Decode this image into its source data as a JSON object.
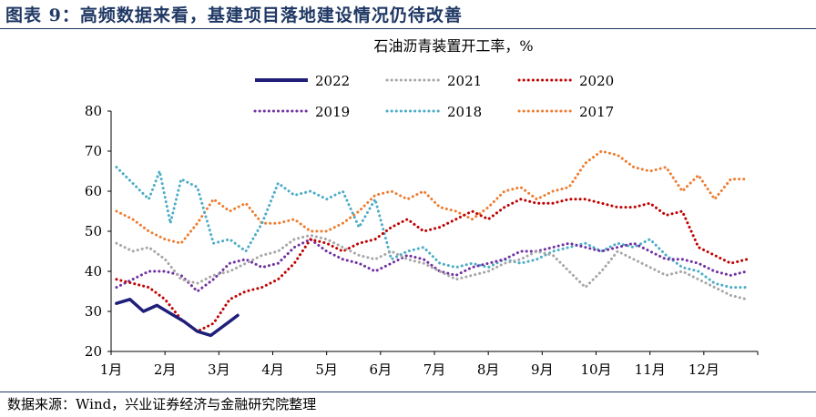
{
  "figure": {
    "title": "图表 9：高频数据来看，基建项目落地建设情况仍待改善",
    "source": "数据来源：Wind，兴业证券经济与金融研究院整理"
  },
  "chart_data": {
    "type": "line",
    "title": "石油沥青装置开工率，%",
    "xlabel": "",
    "ylabel": "",
    "ylim": [
      20,
      80
    ],
    "yticks": [
      20,
      30,
      40,
      50,
      60,
      70,
      80
    ],
    "xlim": [
      0,
      12
    ],
    "months": [
      "1月",
      "2月",
      "3月",
      "4月",
      "5月",
      "6月",
      "7月",
      "8月",
      "9月",
      "10月",
      "11月",
      "12月"
    ],
    "grid": false,
    "legend_position": "top",
    "series": [
      {
        "name": "2022",
        "color": "#1f1f7a",
        "style": "solid",
        "x": [
          0.1,
          0.35,
          0.6,
          0.85,
          1.1,
          1.35,
          1.6,
          1.85,
          2.1,
          2.35
        ],
        "y": [
          32,
          33,
          30,
          31.5,
          29.5,
          27.5,
          25,
          24,
          26.5,
          29
        ]
      },
      {
        "name": "2021",
        "color": "#a6a6a6",
        "style": "dotted",
        "x": [
          0.1,
          0.4,
          0.7,
          1.0,
          1.3,
          1.6,
          1.9,
          2.2,
          2.5,
          2.8,
          3.1,
          3.4,
          3.7,
          4.0,
          4.3,
          4.6,
          4.9,
          5.2,
          5.5,
          5.8,
          6.1,
          6.4,
          6.7,
          7.0,
          7.3,
          7.6,
          7.9,
          8.2,
          8.5,
          8.8,
          9.1,
          9.4,
          9.7,
          10.0,
          10.3,
          10.6,
          10.9,
          11.2,
          11.5,
          11.8
        ],
        "y": [
          47,
          45,
          46,
          43,
          38,
          37,
          39,
          40,
          42,
          44,
          45,
          48,
          49,
          48,
          46,
          44,
          43,
          45,
          43,
          42,
          40,
          38,
          39,
          40,
          42,
          43,
          45,
          44,
          40,
          36,
          40,
          45,
          43,
          41,
          39,
          40,
          38,
          36,
          34,
          33
        ]
      },
      {
        "name": "2020",
        "color": "#c00000",
        "style": "dotted",
        "x": [
          0.1,
          0.4,
          0.7,
          1.0,
          1.3,
          1.6,
          1.9,
          2.2,
          2.5,
          2.8,
          3.1,
          3.4,
          3.7,
          4.0,
          4.3,
          4.6,
          4.9,
          5.2,
          5.5,
          5.8,
          6.1,
          6.4,
          6.7,
          7.0,
          7.3,
          7.6,
          7.9,
          8.2,
          8.5,
          8.8,
          9.1,
          9.4,
          9.7,
          10.0,
          10.3,
          10.6,
          10.9,
          11.2,
          11.5,
          11.8
        ],
        "y": [
          38,
          37,
          36,
          33,
          28,
          25,
          27,
          33,
          35,
          36,
          38,
          42,
          48,
          47,
          45,
          47,
          48,
          51,
          53,
          50,
          51,
          53,
          55,
          53,
          56,
          58,
          57,
          57,
          58,
          58,
          57,
          56,
          56,
          57,
          54,
          55,
          46,
          44,
          42,
          43
        ]
      },
      {
        "name": "2019",
        "color": "#7030a0",
        "style": "dotted",
        "x": [
          0.1,
          0.4,
          0.7,
          1.0,
          1.3,
          1.6,
          1.9,
          2.2,
          2.5,
          2.8,
          3.1,
          3.4,
          3.7,
          4.0,
          4.3,
          4.6,
          4.9,
          5.2,
          5.5,
          5.8,
          6.1,
          6.4,
          6.7,
          7.0,
          7.3,
          7.6,
          7.9,
          8.2,
          8.5,
          8.8,
          9.1,
          9.4,
          9.7,
          10.0,
          10.3,
          10.6,
          10.9,
          11.2,
          11.5,
          11.8
        ],
        "y": [
          36,
          38,
          40,
          40,
          39,
          35,
          38,
          42,
          43,
          41,
          42,
          46,
          48,
          45,
          43,
          42,
          40,
          42,
          44,
          43,
          40,
          39,
          41,
          42,
          43,
          45,
          45,
          46,
          47,
          46,
          45,
          46,
          47,
          45,
          43,
          43,
          42,
          40,
          39,
          40
        ]
      },
      {
        "name": "2018",
        "color": "#4bacc6",
        "style": "dotted",
        "x": [
          0.1,
          0.4,
          0.7,
          0.9,
          1.1,
          1.3,
          1.6,
          1.9,
          2.2,
          2.5,
          2.8,
          3.1,
          3.4,
          3.7,
          4.0,
          4.3,
          4.6,
          4.9,
          5.2,
          5.5,
          5.8,
          6.1,
          6.4,
          6.7,
          7.0,
          7.3,
          7.6,
          7.9,
          8.2,
          8.5,
          8.8,
          9.1,
          9.4,
          9.7,
          10.0,
          10.3,
          10.6,
          10.9,
          11.2,
          11.5,
          11.8
        ],
        "y": [
          66,
          62,
          58,
          65,
          52,
          63,
          61,
          47,
          48,
          45,
          52,
          62,
          59,
          60,
          58,
          60,
          51,
          58,
          43,
          45,
          46,
          42,
          41,
          42,
          41,
          43,
          42,
          43,
          45,
          46,
          47,
          45,
          47,
          46,
          48,
          44,
          41,
          40,
          37,
          36,
          36
        ]
      },
      {
        "name": "2017",
        "color": "#ed7d31",
        "style": "dotted",
        "x": [
          0.1,
          0.4,
          0.7,
          1.0,
          1.3,
          1.6,
          1.9,
          2.2,
          2.5,
          2.8,
          3.1,
          3.4,
          3.7,
          4.0,
          4.3,
          4.6,
          4.9,
          5.2,
          5.5,
          5.8,
          6.1,
          6.4,
          6.7,
          7.0,
          7.3,
          7.6,
          7.9,
          8.2,
          8.5,
          8.8,
          9.1,
          9.4,
          9.7,
          10.0,
          10.3,
          10.6,
          10.9,
          11.2,
          11.5,
          11.8
        ],
        "y": [
          55,
          53,
          50,
          48,
          47,
          52,
          58,
          55,
          57,
          52,
          52,
          53,
          50,
          50,
          52,
          55,
          59,
          60,
          58,
          60,
          56,
          55,
          53,
          56,
          60,
          61,
          58,
          60,
          61,
          67,
          70,
          69,
          66,
          65,
          66,
          60,
          64,
          58,
          63,
          63
        ]
      }
    ]
  }
}
